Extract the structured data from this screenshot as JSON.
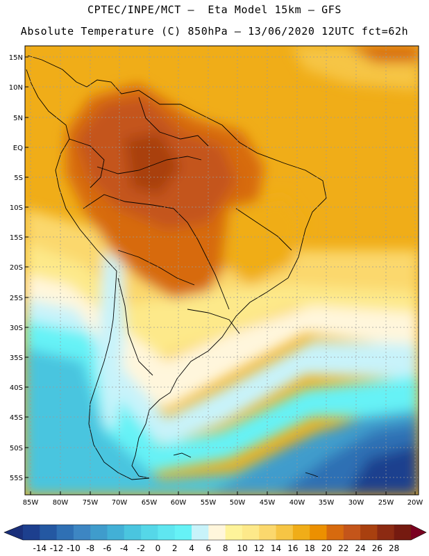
{
  "header": {
    "line1": "CPTEC/INPE/MCT –  Eta Model 15km – GFS",
    "line2": "Absolute Temperature (C) 850hPa – 13/06/2020 12UTC fct=62h"
  },
  "map": {
    "lat_labels": [
      "15N",
      "10N",
      "5N",
      "EQ",
      "5S",
      "10S",
      "15S",
      "20S",
      "25S",
      "30S",
      "35S",
      "40S",
      "45S",
      "50S",
      "55S"
    ],
    "lon_labels": [
      "85W",
      "80W",
      "75W",
      "70W",
      "65W",
      "60W",
      "55W",
      "50W",
      "45W",
      "40W",
      "35W",
      "30W",
      "25W",
      "20W"
    ]
  },
  "colorbar": {
    "labels": [
      "-14",
      "-12",
      "-10",
      "-8",
      "-6",
      "-4",
      "-2",
      "0",
      "2",
      "4",
      "6",
      "8",
      "10",
      "12",
      "14",
      "16",
      "18",
      "20",
      "22",
      "24",
      "26",
      "28"
    ],
    "colors": [
      "#1d3f8e",
      "#2458a2",
      "#2f70b4",
      "#3d86c3",
      "#3f9ccc",
      "#42b0d6",
      "#4ac5df",
      "#55d7e8",
      "#5fe6f0",
      "#66f2f6",
      "#c8f3fa",
      "#fff6dc",
      "#fef39a",
      "#fde98a",
      "#fbd86d",
      "#f6c544",
      "#f0ad18",
      "#ec9000",
      "#d76a0e",
      "#c4551a",
      "#a9400f",
      "#8c2a12",
      "#751a10"
    ],
    "low_end_color": "#1a2f7a",
    "high_end_color": "#7a0020"
  },
  "colors": {
    "land_border": "#000000",
    "grid": "#9a9a9a"
  }
}
